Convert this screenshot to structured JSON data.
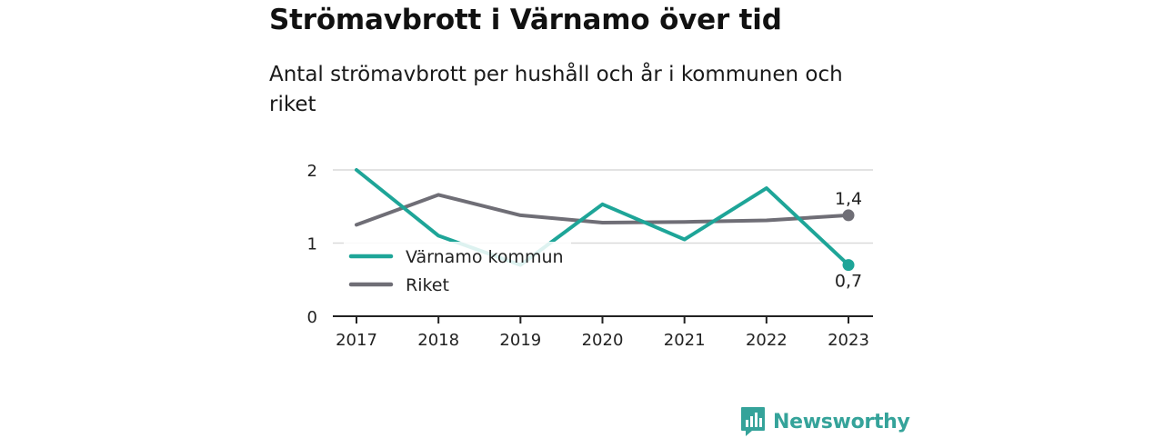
{
  "title": "Strömavbrott i Värnamo över tid",
  "subtitle": "Antal strömavbrott per hushåll och år i kommunen och riket",
  "brand": {
    "name": "Newsworthy",
    "icon": "newsworthy-logo-icon"
  },
  "colors": {
    "varnamo": "#1ea598",
    "riket": "#6f6e76",
    "grid": "#d9d9d9",
    "axis": "#222222"
  },
  "chart_data": {
    "type": "line",
    "x": [
      "2017",
      "2018",
      "2019",
      "2020",
      "2021",
      "2022",
      "2023"
    ],
    "ylim": [
      0,
      2
    ],
    "yticks": [
      "0",
      "1",
      "2"
    ],
    "grid": true,
    "legend_placement": "bottom-left",
    "series": [
      {
        "name": "Värnamo kommun",
        "values": [
          2.0,
          1.1,
          0.7,
          1.53,
          1.05,
          1.75,
          0.7
        ],
        "end_label": "0,7"
      },
      {
        "name": "Riket",
        "values": [
          1.25,
          1.66,
          1.38,
          1.28,
          1.29,
          1.31,
          1.38
        ],
        "end_label": "1,4"
      }
    ]
  }
}
